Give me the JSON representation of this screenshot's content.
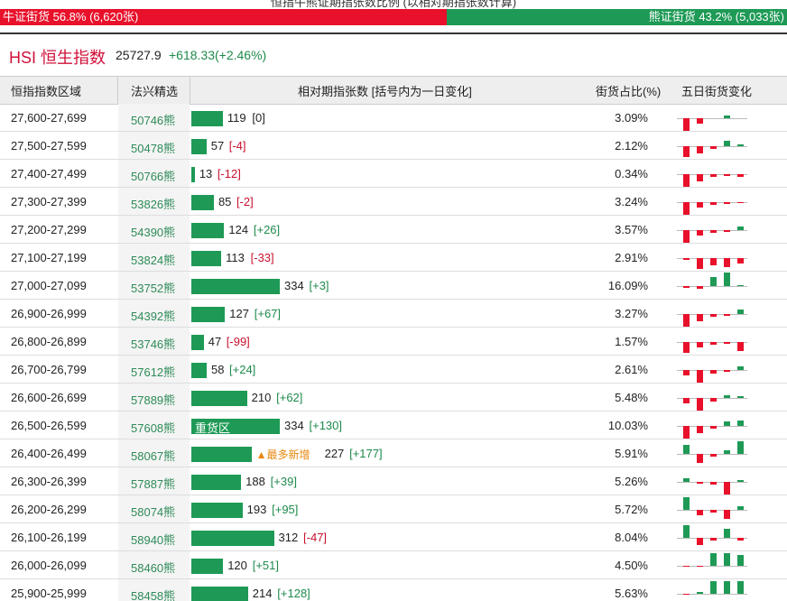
{
  "top_bar": {
    "caption": "恒指牛熊证期指张数比例 (以相对期指张数计算)",
    "bull_label": "牛证街货 56.8% (6,620张)",
    "bull_share": 56.8,
    "bear_label": "熊证街货 43.2% (5,033张)",
    "bear_share": 43.2
  },
  "header": {
    "index_name": "HSI 恒生指数",
    "index_value": "25727.9",
    "index_change": "+618.33(+2.46%)"
  },
  "table": {
    "columns": [
      "恒指指数区域",
      "法兴精选",
      "相对期指张数 [括号内为一日变化]",
      "街货占比(%)",
      "五日街货变化"
    ],
    "rows": [
      {
        "range": "27,600-27,699",
        "code": "50746熊",
        "count": 119,
        "change": "[0]",
        "share": "3.09%",
        "five_day": [
          -14,
          -6,
          0,
          3,
          0
        ]
      },
      {
        "range": "27,500-27,599",
        "code": "50478熊",
        "count": 57,
        "change": "[-4]",
        "share": "2.12%",
        "five_day": [
          -12,
          -8,
          -3,
          6,
          2
        ]
      },
      {
        "range": "27,400-27,499",
        "code": "50766熊",
        "count": 13,
        "change": "[-12]",
        "share": "0.34%",
        "five_day": [
          -14,
          -8,
          -3,
          -2,
          -3
        ]
      },
      {
        "range": "27,300-27,399",
        "code": "53826熊",
        "count": 85,
        "change": "[-2]",
        "share": "3.24%",
        "five_day": [
          -14,
          -6,
          -3,
          -2,
          -1
        ]
      },
      {
        "range": "27,200-27,299",
        "code": "54390熊",
        "count": 124,
        "change": "[+26]",
        "share": "3.57%",
        "five_day": [
          -14,
          -6,
          -3,
          -2,
          4
        ]
      },
      {
        "range": "27,100-27,199",
        "code": "53824熊",
        "count": 113,
        "change": "[-33]",
        "share": "2.91%",
        "five_day": [
          -2,
          -12,
          -8,
          -10,
          -6
        ]
      },
      {
        "range": "27,000-27,099",
        "code": "53752熊",
        "count": 334,
        "change": "[+3]",
        "share": "16.09%",
        "five_day": [
          -2,
          -3,
          10,
          15,
          1
        ]
      },
      {
        "range": "26,900-26,999",
        "code": "54392熊",
        "count": 127,
        "change": "[+67]",
        "share": "3.27%",
        "five_day": [
          -14,
          -8,
          -3,
          -2,
          5
        ]
      },
      {
        "range": "26,800-26,899",
        "code": "53746熊",
        "count": 47,
        "change": "[-99]",
        "share": "1.57%",
        "five_day": [
          -12,
          -6,
          -3,
          -2,
          -10
        ]
      },
      {
        "range": "26,700-26,799",
        "code": "57612熊",
        "count": 58,
        "change": "[+24]",
        "share": "2.61%",
        "five_day": [
          -6,
          -14,
          -4,
          -2,
          4
        ]
      },
      {
        "range": "26,600-26,699",
        "code": "57889熊",
        "count": 210,
        "change": "[+62]",
        "share": "5.48%",
        "five_day": [
          -6,
          -14,
          -4,
          3,
          2
        ]
      },
      {
        "range": "26,500-26,599",
        "code": "57608熊",
        "count": 334,
        "change": "[+130]",
        "tag": "重货区",
        "share": "10.03%",
        "five_day": [
          -14,
          -8,
          -3,
          5,
          6
        ]
      },
      {
        "range": "26,400-26,499",
        "code": "58067熊",
        "count": 227,
        "change": "[+177]",
        "tag": "▲最多新增",
        "share": "5.91%",
        "five_day": [
          10,
          -10,
          -3,
          4,
          14
        ]
      },
      {
        "range": "26,300-26,399",
        "code": "57887熊",
        "count": 188,
        "change": "[+39]",
        "share": "5.26%",
        "five_day": [
          4,
          -2,
          -3,
          -14,
          2
        ]
      },
      {
        "range": "26,200-26,299",
        "code": "58074熊",
        "count": 193,
        "change": "[+95]",
        "share": "5.72%",
        "five_day": [
          14,
          -6,
          -3,
          -10,
          4
        ]
      },
      {
        "range": "26,100-26,199",
        "code": "58940熊",
        "count": 312,
        "change": "[-47]",
        "share": "8.04%",
        "five_day": [
          14,
          -8,
          -3,
          10,
          -3
        ]
      },
      {
        "range": "26,000-26,099",
        "code": "58460熊",
        "count": 120,
        "change": "[+51]",
        "share": "4.50%",
        "five_day": [
          -1,
          -1,
          14,
          14,
          12
        ]
      },
      {
        "range": "25,900-25,999",
        "code": "58458熊",
        "count": 214,
        "change": "[+128]",
        "share": "5.63%",
        "five_day": [
          -1,
          2,
          14,
          14,
          14
        ]
      }
    ]
  }
}
